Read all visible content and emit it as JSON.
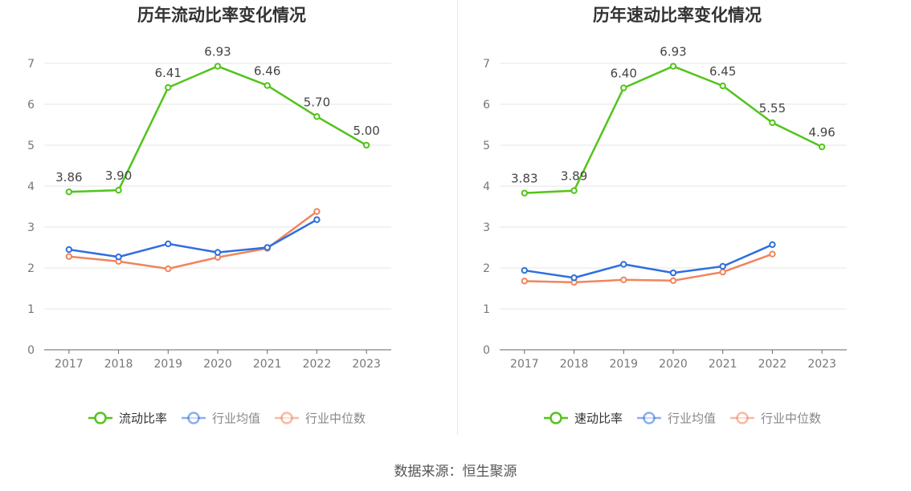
{
  "source_label": "数据来源：恒生聚源",
  "chart_data": [
    {
      "type": "line",
      "title": "历年流动比率变化情况",
      "categories": [
        "2017",
        "2018",
        "2019",
        "2020",
        "2021",
        "2022",
        "2023"
      ],
      "ylim": [
        0,
        7
      ],
      "yticks": [
        0,
        1,
        2,
        3,
        4,
        5,
        6,
        7
      ],
      "grid": true,
      "legend": "bottom-center",
      "series": [
        {
          "name": "流动比率",
          "color": "#52c41a",
          "values": [
            3.86,
            3.9,
            6.41,
            6.93,
            6.46,
            5.7,
            5.0
          ],
          "labels": [
            "3.86",
            "3.90",
            "6.41",
            "6.93",
            "6.46",
            "5.70",
            "5.00"
          ]
        },
        {
          "name": "行业均值",
          "color": "#2f6fde",
          "values": [
            2.45,
            2.27,
            2.59,
            2.38,
            2.5,
            3.18,
            null
          ]
        },
        {
          "name": "行业中位数",
          "color": "#f0855c",
          "values": [
            2.28,
            2.16,
            1.98,
            2.26,
            2.48,
            3.38,
            null
          ]
        }
      ]
    },
    {
      "type": "line",
      "title": "历年速动比率变化情况",
      "categories": [
        "2017",
        "2018",
        "2019",
        "2020",
        "2021",
        "2022",
        "2023"
      ],
      "ylim": [
        0,
        7
      ],
      "yticks": [
        0,
        1,
        2,
        3,
        4,
        5,
        6,
        7
      ],
      "grid": true,
      "legend": "bottom-center",
      "series": [
        {
          "name": "速动比率",
          "color": "#52c41a",
          "values": [
            3.83,
            3.89,
            6.4,
            6.93,
            6.45,
            5.55,
            4.96
          ],
          "labels": [
            "3.83",
            "3.89",
            "6.40",
            "6.93",
            "6.45",
            "5.55",
            "4.96"
          ]
        },
        {
          "name": "行业均值",
          "color": "#2f6fde",
          "values": [
            1.94,
            1.76,
            2.09,
            1.88,
            2.04,
            2.57,
            null
          ]
        },
        {
          "name": "行业中位数",
          "color": "#f0855c",
          "values": [
            1.68,
            1.65,
            1.71,
            1.69,
            1.9,
            2.34,
            null
          ]
        }
      ]
    }
  ]
}
